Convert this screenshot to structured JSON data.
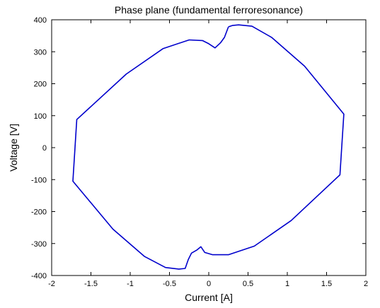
{
  "chart_data": {
    "type": "line",
    "title": "Phase plane (fundamental ferroresonance)",
    "xlabel": "Current [A]",
    "ylabel": "Voltage [V]",
    "xlim": [
      -2,
      2
    ],
    "ylim": [
      -400,
      400
    ],
    "xticks": [
      -2,
      -1.5,
      -1,
      -0.5,
      0,
      0.5,
      1,
      1.5,
      2
    ],
    "yticks": [
      -400,
      -300,
      -200,
      -100,
      0,
      100,
      200,
      300,
      400
    ],
    "xtick_labels": [
      "-2",
      "-1.5",
      "-1",
      "-0.5",
      "0",
      "0.5",
      "1",
      "1.5",
      "2"
    ],
    "ytick_labels": [
      "-400",
      "-300",
      "-200",
      "-100",
      "0",
      "100",
      "200",
      "300",
      "400"
    ],
    "grid": false,
    "series": [
      {
        "color": "#0000cc",
        "x": [
          0.25,
          0.3,
          0.38,
          0.55,
          0.8,
          1.22,
          1.72,
          1.67,
          1.05,
          0.58,
          0.25,
          0.05,
          -0.05,
          -0.1,
          -0.15,
          -0.22,
          -0.26,
          -0.3,
          -0.38,
          -0.55,
          -0.82,
          -1.22,
          -1.73,
          -1.68,
          -1.05,
          -0.58,
          -0.25,
          -0.08,
          0.0,
          0.08,
          0.15,
          0.2,
          0.25
        ],
        "y": [
          378,
          382,
          384,
          380,
          345,
          255,
          105,
          -85,
          -228,
          -308,
          -335,
          -335,
          -328,
          -310,
          -320,
          -330,
          -350,
          -378,
          -380,
          -375,
          -340,
          -255,
          -105,
          88,
          230,
          310,
          337,
          335,
          325,
          312,
          328,
          345,
          378
        ]
      }
    ]
  }
}
